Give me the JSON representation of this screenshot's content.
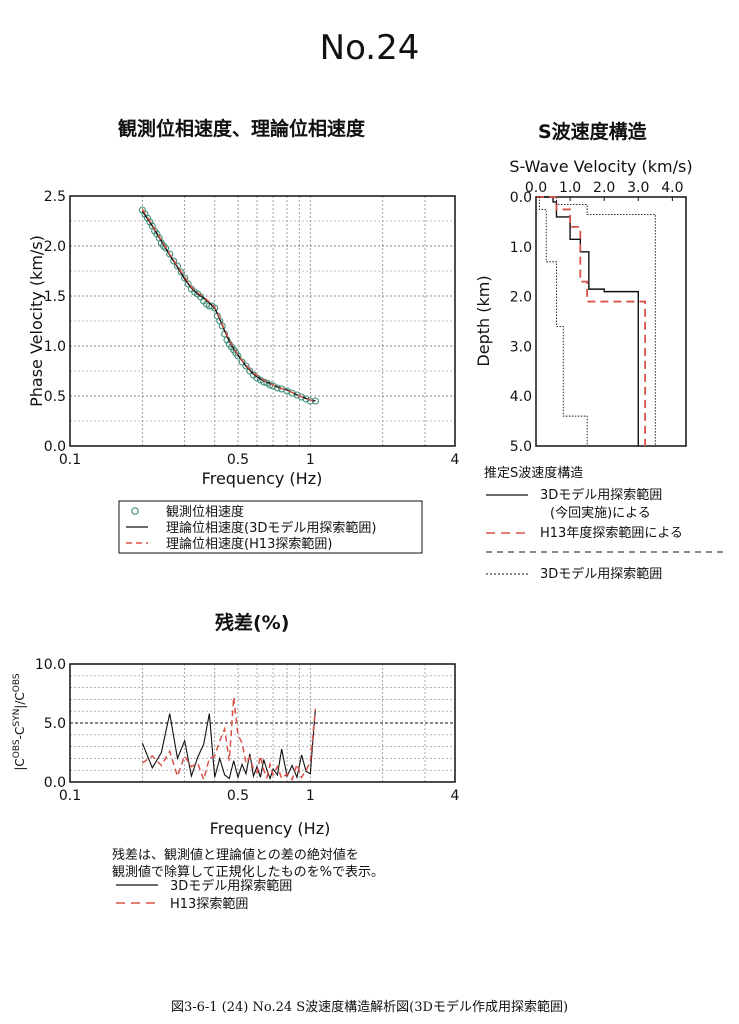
{
  "page_title": "No.24",
  "footer": "図3-6-1 (24)  No.24 S波速度構造解析図(3Dモデル作成用探索範囲)",
  "dispersion_title": "観測位相速度、理論位相速度",
  "vs_title": "S波速度構造",
  "residual_title": "残差(%)",
  "dispersion_legend": {
    "observed": "観測位相速度",
    "theory_3d": "理論位相速度(3Dモデル用探索範囲)",
    "theory_h13": "理論位相速度(H13探索範囲)"
  },
  "vs_legend": {
    "heading": "推定S波速度構造",
    "line1a": "3Dモデル用探索範囲",
    "line1b": "(今回実施)による",
    "line2": "H13年度探索範囲による",
    "line3": "3Dモデル用探索範囲"
  },
  "residual_note": {
    "line1": "残差は、観測値と理論値との差の絶対値を",
    "line2": "観測値で除算して正規化したものを%で表示。",
    "legend_3d": "3Dモデル用探索範囲",
    "legend_h13": "H13探索範囲"
  },
  "colors": {
    "black": "#111111",
    "red": "#d9534a",
    "obs": "#3f8f7a",
    "grid": "#888888"
  },
  "chart_data": [
    {
      "type": "scatter",
      "xlabel": "Frequency (Hz)",
      "ylabel": "Phase Velocity (km/s)",
      "x_scale": "log",
      "xlim": [
        0.1,
        4
      ],
      "ylim": [
        0,
        2.5
      ],
      "x_tick_labels": [
        "0.1",
        "0.5",
        "1",
        "4"
      ],
      "y_tick_labels": [
        "0.0",
        "0.5",
        "1.0",
        "1.5",
        "2.0",
        "2.5"
      ],
      "grid": true,
      "series": [
        {
          "name": "観測位相速度",
          "x": [
            0.2,
            0.205,
            0.21,
            0.215,
            0.22,
            0.225,
            0.23,
            0.235,
            0.24,
            0.245,
            0.25,
            0.26,
            0.27,
            0.28,
            0.29,
            0.3,
            0.31,
            0.32,
            0.33,
            0.34,
            0.35,
            0.36,
            0.37,
            0.38,
            0.39,
            0.4,
            0.41,
            0.42,
            0.43,
            0.44,
            0.45,
            0.46,
            0.47,
            0.48,
            0.49,
            0.5,
            0.52,
            0.54,
            0.56,
            0.58,
            0.6,
            0.62,
            0.64,
            0.66,
            0.68,
            0.7,
            0.73,
            0.76,
            0.8,
            0.84,
            0.88,
            0.92,
            0.96,
            1.0,
            1.05
          ],
          "y": [
            2.36,
            2.32,
            2.28,
            2.24,
            2.2,
            2.15,
            2.12,
            2.08,
            2.03,
            2.0,
            1.98,
            1.92,
            1.85,
            1.8,
            1.74,
            1.68,
            1.62,
            1.57,
            1.54,
            1.52,
            1.49,
            1.45,
            1.42,
            1.4,
            1.4,
            1.38,
            1.3,
            1.25,
            1.2,
            1.12,
            1.06,
            1.02,
            0.99,
            0.96,
            0.93,
            0.9,
            0.84,
            0.8,
            0.75,
            0.71,
            0.68,
            0.66,
            0.64,
            0.63,
            0.61,
            0.6,
            0.58,
            0.57,
            0.55,
            0.53,
            0.51,
            0.49,
            0.47,
            0.45,
            0.45
          ]
        },
        {
          "name": "理論位相速度(3Dモデル用探索範囲)",
          "x": [
            0.2,
            0.22,
            0.24,
            0.26,
            0.28,
            0.3,
            0.32,
            0.34,
            0.36,
            0.38,
            0.4,
            0.42,
            0.44,
            0.46,
            0.48,
            0.5,
            0.54,
            0.58,
            0.62,
            0.66,
            0.7,
            0.75,
            0.8,
            0.85,
            0.9,
            0.95,
            1.0,
            1.05
          ],
          "y": [
            2.35,
            2.2,
            2.05,
            1.91,
            1.79,
            1.67,
            1.58,
            1.52,
            1.48,
            1.43,
            1.38,
            1.27,
            1.15,
            1.05,
            0.97,
            0.91,
            0.8,
            0.72,
            0.67,
            0.64,
            0.61,
            0.58,
            0.56,
            0.53,
            0.5,
            0.48,
            0.46,
            0.45
          ]
        },
        {
          "name": "理論位相速度(H13探索範囲)",
          "x": [
            0.2,
            0.22,
            0.24,
            0.26,
            0.28,
            0.3,
            0.32,
            0.34,
            0.36,
            0.38,
            0.4,
            0.42,
            0.44,
            0.46,
            0.48,
            0.5,
            0.54,
            0.58,
            0.62,
            0.66,
            0.7,
            0.75,
            0.8,
            0.85,
            0.9,
            0.95,
            1.0,
            1.05
          ],
          "y": [
            2.37,
            2.21,
            2.06,
            1.92,
            1.8,
            1.69,
            1.59,
            1.53,
            1.49,
            1.44,
            1.39,
            1.28,
            1.16,
            1.06,
            0.98,
            0.91,
            0.81,
            0.73,
            0.68,
            0.64,
            0.61,
            0.58,
            0.56,
            0.53,
            0.5,
            0.48,
            0.46,
            0.45
          ]
        }
      ]
    },
    {
      "type": "line",
      "title": "S-Wave Velocity (km/s)",
      "ylabel": "Depth (km)",
      "xlim": [
        0,
        4
      ],
      "ylim": [
        0,
        5
      ],
      "x_tick_labels": [
        "0.0",
        "1.0",
        "2.0",
        "3.0",
        "4.0"
      ],
      "y_tick_labels": [
        "0.0",
        "1.0",
        "2.0",
        "3.0",
        "4.0",
        "5.0"
      ],
      "grid": false,
      "series": [
        {
          "name": "3Dモデル用探索範囲(今回実施)による",
          "style": "solid",
          "points": [
            [
              0,
              0
            ],
            [
              0.5,
              0
            ],
            [
              0.5,
              0.1
            ],
            [
              0.6,
              0.1
            ],
            [
              0.6,
              0.4
            ],
            [
              1.0,
              0.4
            ],
            [
              1.0,
              0.85
            ],
            [
              1.3,
              0.85
            ],
            [
              1.3,
              1.1
            ],
            [
              1.55,
              1.1
            ],
            [
              1.55,
              1.85
            ],
            [
              2.0,
              1.85
            ],
            [
              2.0,
              1.9
            ],
            [
              3.0,
              1.9
            ],
            [
              3.0,
              5
            ]
          ]
        },
        {
          "name": "H13年度探索範囲による",
          "style": "dashed",
          "points": [
            [
              0,
              0
            ],
            [
              0.6,
              0
            ],
            [
              0.6,
              0.25
            ],
            [
              1.0,
              0.25
            ],
            [
              1.0,
              0.6
            ],
            [
              1.3,
              0.6
            ],
            [
              1.3,
              1.7
            ],
            [
              1.5,
              1.7
            ],
            [
              1.5,
              2.1
            ],
            [
              3.2,
              2.1
            ],
            [
              3.2,
              5
            ]
          ]
        },
        {
          "name": "3Dモデル用探索範囲",
          "style": "dotted",
          "points": [
            [
              0,
              0
            ],
            [
              0.1,
              0
            ],
            [
              0.1,
              0.25
            ],
            [
              0.3,
              0.25
            ],
            [
              0.3,
              1.3
            ],
            [
              0.6,
              1.3
            ],
            [
              0.6,
              2.6
            ],
            [
              0.8,
              2.6
            ],
            [
              0.8,
              4.4
            ],
            [
              1.5,
              4.4
            ],
            [
              1.5,
              5
            ]
          ]
        },
        {
          "name": "3Dモデル用探索範囲",
          "style": "dotted",
          "points": [
            [
              0.6,
              0
            ],
            [
              0.6,
              0.15
            ],
            [
              1.5,
              0.15
            ],
            [
              1.5,
              0.35
            ],
            [
              3.5,
              0.35
            ],
            [
              3.5,
              5
            ]
          ]
        }
      ]
    },
    {
      "type": "line",
      "xlabel": "Frequency (Hz)",
      "ylabel": "|C^OBS-C^SYN|/C^OBS",
      "x_scale": "log",
      "xlim": [
        0.1,
        4
      ],
      "ylim": [
        0,
        10
      ],
      "x_tick_labels": [
        "0.1",
        "0.5",
        "1",
        "4"
      ],
      "y_tick_labels": [
        "0.0",
        "5.0",
        "10.0"
      ],
      "grid": true,
      "series": [
        {
          "name": "3Dモデル用探索範囲",
          "style": "solid",
          "x": [
            0.2,
            0.22,
            0.24,
            0.26,
            0.28,
            0.3,
            0.32,
            0.34,
            0.36,
            0.38,
            0.4,
            0.42,
            0.44,
            0.46,
            0.48,
            0.5,
            0.52,
            0.54,
            0.56,
            0.58,
            0.6,
            0.62,
            0.64,
            0.66,
            0.68,
            0.7,
            0.73,
            0.76,
            0.8,
            0.84,
            0.88,
            0.92,
            0.96,
            1.0,
            1.05
          ],
          "y": [
            3.3,
            1.2,
            2.5,
            5.8,
            2.0,
            3.5,
            0.5,
            2.1,
            3.2,
            5.8,
            0.4,
            2.0,
            0.6,
            0.3,
            1.8,
            0.4,
            1.5,
            0.7,
            2.4,
            0.5,
            1.3,
            0.4,
            1.9,
            1.0,
            0.3,
            1.1,
            0.6,
            2.8,
            0.5,
            1.4,
            0.4,
            2.3,
            0.9,
            0.7,
            6.2
          ]
        },
        {
          "name": "H13探索範囲",
          "style": "dashed",
          "x": [
            0.2,
            0.22,
            0.24,
            0.26,
            0.28,
            0.3,
            0.32,
            0.34,
            0.36,
            0.38,
            0.4,
            0.42,
            0.44,
            0.46,
            0.48,
            0.5,
            0.52,
            0.54,
            0.56,
            0.58,
            0.6,
            0.62,
            0.64,
            0.66,
            0.68,
            0.7,
            0.73,
            0.76,
            0.8,
            0.84,
            0.88,
            0.92,
            0.96,
            1.0,
            1.05
          ],
          "y": [
            1.6,
            2.2,
            1.4,
            2.6,
            0.5,
            2.2,
            1.3,
            1.6,
            0.2,
            2.0,
            2.2,
            3.5,
            4.5,
            1.8,
            7.2,
            4.0,
            3.3,
            1.6,
            2.1,
            1.1,
            0.8,
            2.2,
            1.0,
            0.4,
            1.5,
            0.6,
            1.3,
            0.3,
            0.7,
            0.2,
            1.5,
            0.4,
            1.0,
            1.7,
            6.2
          ]
        }
      ]
    }
  ]
}
